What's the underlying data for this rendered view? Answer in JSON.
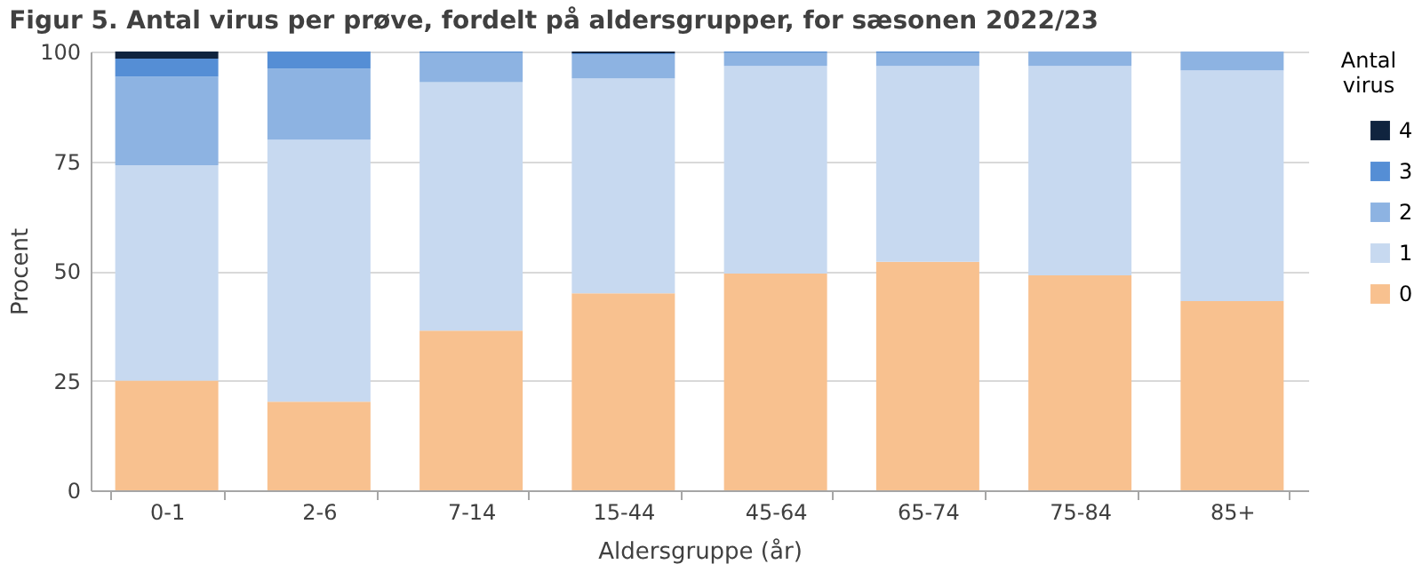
{
  "chart_data": {
    "type": "bar",
    "title": "Figur 5. Antal virus per prøve, fordelt på aldersgrupper, for sæsonen 2022/23",
    "xlabel": "Aldersgruppe  (år)",
    "ylabel": "Procent",
    "legend_title": "Antal virus",
    "categories": [
      "0-1",
      "2-6",
      "7-14",
      "15-44",
      "45-64",
      "65-74",
      "75-84",
      "85+"
    ],
    "stacked": true,
    "series": [
      {
        "name": "0",
        "color": "#f8c18f",
        "values": [
          25,
          20.2,
          36.4,
          44.9,
          49.4,
          52.1,
          49.0,
          43.1
        ]
      },
      {
        "name": "1",
        "color": "#c7d9f0",
        "values": [
          49.1,
          59.7,
          56.6,
          49.0,
          47.3,
          44.6,
          47.7,
          52.6
        ]
      },
      {
        "name": "2",
        "color": "#8db3e2",
        "values": [
          20.2,
          16.2,
          6.7,
          5.4,
          3.0,
          3.0,
          3.3,
          4.3
        ]
      },
      {
        "name": "3",
        "color": "#558ed5",
        "values": [
          4.1,
          3.9,
          0.3,
          0.3,
          0.3,
          0.3,
          0,
          0
        ]
      },
      {
        "name": "4",
        "color": "#10243f",
        "values": [
          1.6,
          0,
          0,
          0.4,
          0,
          0,
          0,
          0
        ]
      }
    ],
    "ylim": [
      0,
      100
    ],
    "yticks": [
      0,
      25,
      50,
      75,
      100
    ],
    "grid": "y",
    "legend": "right"
  }
}
